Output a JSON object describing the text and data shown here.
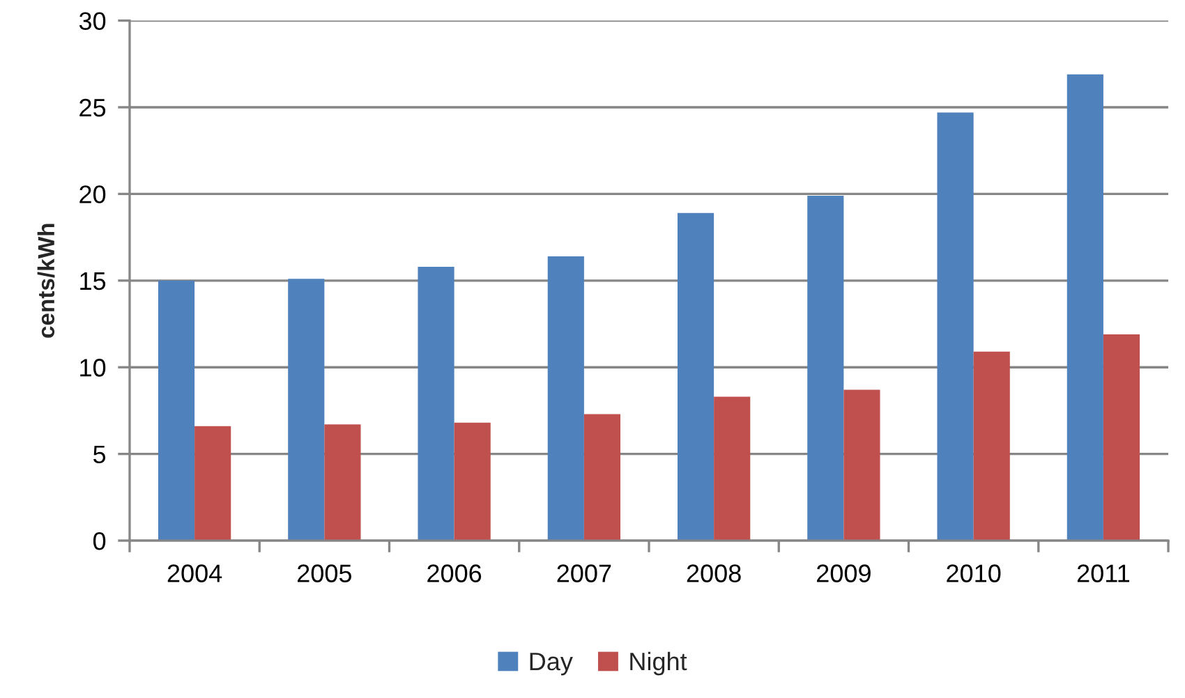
{
  "chart_data": {
    "type": "bar",
    "ylabel": "cents/kWh",
    "categories": [
      "2004",
      "2005",
      "2006",
      "2007",
      "2008",
      "2009",
      "2010",
      "2011"
    ],
    "series": [
      {
        "name": "Day",
        "color": "#4f81bd",
        "values": [
          15.0,
          15.1,
          15.8,
          16.4,
          18.9,
          19.9,
          24.7,
          26.9
        ]
      },
      {
        "name": "Night",
        "color": "#c0504d",
        "values": [
          6.6,
          6.7,
          6.8,
          7.3,
          8.3,
          8.7,
          10.9,
          11.9
        ]
      }
    ],
    "ylim": [
      0,
      30
    ],
    "yticks": [
      0,
      5,
      10,
      15,
      20,
      25,
      30
    ],
    "grid": "y",
    "legend": "bottom"
  }
}
